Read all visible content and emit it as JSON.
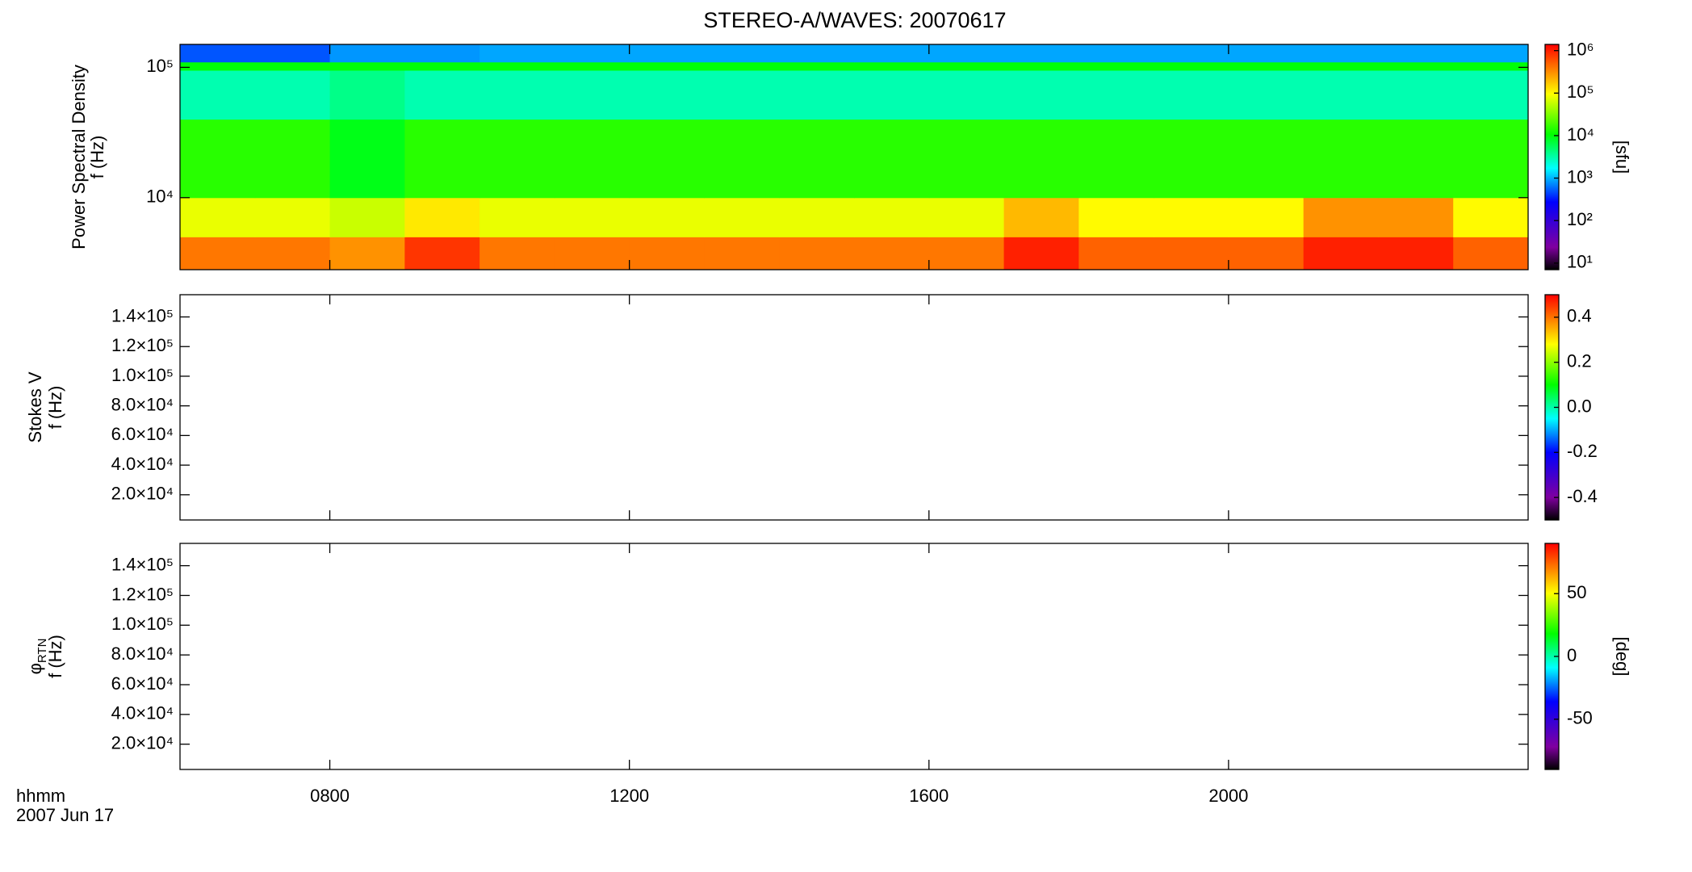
{
  "chart_data": [
    {
      "type": "heatmap",
      "title": "STEREO-A/WAVES: 20070617",
      "ylabel": "Power Spectral Density",
      "ylabel2": "f (Hz)",
      "clabel": "[sfu]",
      "xlim": [
        6,
        24
      ],
      "ylim": [
        2800,
        150000
      ],
      "ylog": true,
      "yticks": [
        {
          "value": 10000,
          "label": "10⁴"
        },
        {
          "value": 100000,
          "label": "10⁵"
        }
      ],
      "x_bins": [
        6,
        7,
        8,
        9,
        10,
        11,
        12,
        13,
        14,
        15,
        16,
        17,
        18,
        19,
        20,
        21,
        22,
        23,
        24
      ],
      "y_bins": [
        2800,
        5000,
        10000,
        40000,
        95000,
        110000,
        150000
      ],
      "z": [
        [
          400000,
          400000,
          300000,
          800000,
          400000,
          400000,
          400000,
          400000,
          400000,
          400000,
          400000,
          1000000,
          500000,
          500000,
          500000,
          1000000,
          1000000,
          500000
        ],
        [
          80000,
          80000,
          60000,
          120000,
          80000,
          80000,
          80000,
          80000,
          80000,
          80000,
          80000,
          200000,
          100000,
          100000,
          100000,
          300000,
          300000,
          100000
        ],
        [
          15000,
          15000,
          9000,
          15000,
          15000,
          15000,
          15000,
          15000,
          15000,
          15000,
          15000,
          15000,
          15000,
          15000,
          15000,
          15000,
          15000,
          15000
        ],
        [
          3000,
          3000,
          4000,
          3000,
          3000,
          3000,
          3000,
          3000,
          3000,
          3000,
          3000,
          3000,
          3000,
          3000,
          3000,
          3000,
          3000,
          3000
        ],
        [
          10000,
          10000,
          10000,
          10000,
          10000,
          10000,
          10000,
          10000,
          10000,
          10000,
          10000,
          10000,
          10000,
          10000,
          10000,
          10000,
          10000,
          10000
        ],
        [
          500,
          500,
          800,
          800,
          900,
          900,
          900,
          900,
          900,
          900,
          900,
          900,
          900,
          900,
          900,
          900,
          900,
          900
        ]
      ],
      "clim": [
        7,
        1400000
      ],
      "clog": true,
      "cticks": [
        {
          "value": 10,
          "label": "10¹"
        },
        {
          "value": 100,
          "label": "10²"
        },
        {
          "value": 1000,
          "label": "10³"
        },
        {
          "value": 10000,
          "label": "10⁴"
        },
        {
          "value": 100000,
          "label": "10⁵"
        },
        {
          "value": 1000000,
          "label": "10⁶"
        }
      ]
    },
    {
      "type": "heatmap",
      "ylabel": "Stokes V",
      "ylabel2": "f (Hz)",
      "xlim": [
        6,
        24
      ],
      "ylim": [
        3000,
        155000
      ],
      "ylog": false,
      "yticks": [
        {
          "value": 20000,
          "label": "2.0×10⁴"
        },
        {
          "value": 40000,
          "label": "4.0×10⁴"
        },
        {
          "value": 60000,
          "label": "6.0×10⁴"
        },
        {
          "value": 80000,
          "label": "8.0×10⁴"
        },
        {
          "value": 100000,
          "label": "1.0×10⁵"
        },
        {
          "value": 120000,
          "label": "1.2×10⁵"
        },
        {
          "value": 140000,
          "label": "1.4×10⁵"
        }
      ],
      "clim": [
        -0.5,
        0.5
      ],
      "clog": false,
      "cticks": [
        -0.4,
        -0.2,
        {
          "value": 0,
          "label": "0.0"
        },
        0.2,
        0.4
      ]
    },
    {
      "type": "heatmap",
      "ylabel": "φ",
      "ylabel_sub": "RTN",
      "ylabel2": "f (Hz)",
      "clabel": "[deg]",
      "xlim": [
        6,
        24
      ],
      "ylim": [
        3000,
        155000
      ],
      "ylog": false,
      "yticks": [
        {
          "value": 20000,
          "label": "2.0×10⁴"
        },
        {
          "value": 40000,
          "label": "4.0×10⁴"
        },
        {
          "value": 60000,
          "label": "6.0×10⁴"
        },
        {
          "value": 80000,
          "label": "8.0×10⁴"
        },
        {
          "value": 100000,
          "label": "1.0×10⁵"
        },
        {
          "value": 120000,
          "label": "1.2×10⁵"
        },
        {
          "value": 140000,
          "label": "1.4×10⁵"
        }
      ],
      "clim": [
        -90,
        90
      ],
      "clog": false,
      "cticks": [
        -50,
        0,
        50
      ],
      "xticks": [
        {
          "value": 8,
          "label": "0800"
        },
        {
          "value": 12,
          "label": "1200"
        },
        {
          "value": 16,
          "label": "1600"
        },
        {
          "value": 20,
          "label": "2000"
        }
      ],
      "xlabel": "hhmm",
      "xlabel2": "2007 Jun 17"
    }
  ]
}
